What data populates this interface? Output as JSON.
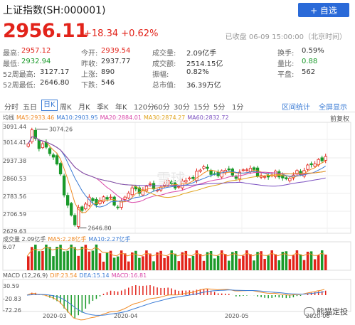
{
  "header": {
    "title": "上证指数(SH:000001)",
    "add_button": "+ 自选"
  },
  "quote": {
    "price": "2956.11",
    "change": "+18.34 +0.62%",
    "status": "已收盘 06-09 15:00:00（北京时间）"
  },
  "stats": {
    "rows": [
      [
        {
          "label": "最高:",
          "value": "2957.12",
          "color": "red"
        },
        {
          "label": "今开:",
          "value": "2939.54",
          "color": "red"
        },
        {
          "label": "成交量:",
          "value": "2.09亿手",
          "color": ""
        },
        {
          "label": "换手:",
          "value": "0.59%",
          "color": ""
        }
      ],
      [
        {
          "label": "最低:",
          "value": "2932.94",
          "color": "green"
        },
        {
          "label": "昨收:",
          "value": "2937.77",
          "color": ""
        },
        {
          "label": "成交额:",
          "value": "2514.15亿",
          "color": ""
        },
        {
          "label": "量比:",
          "value": "0.88",
          "color": "green"
        }
      ],
      [
        {
          "label": "52周最高:",
          "value": "3127.17",
          "color": ""
        },
        {
          "label": "上涨:",
          "value": "890",
          "color": ""
        },
        {
          "label": "振幅:",
          "value": "0.82%",
          "color": ""
        },
        {
          "label": "平盘:",
          "value": "562",
          "color": ""
        }
      ],
      [
        {
          "label": "52周最低:",
          "value": "2646.80",
          "color": ""
        },
        {
          "label": "下跌:",
          "value": "546",
          "color": ""
        },
        {
          "label": "总市值:",
          "value": "36.39万亿",
          "color": ""
        },
        {
          "label": "",
          "value": "",
          "color": ""
        }
      ]
    ]
  },
  "tabs": [
    "分时",
    "五日",
    "日K",
    "周K",
    "月K",
    "季K",
    "年K",
    "120分",
    "60分",
    "30分",
    "15分",
    "5分",
    "1分"
  ],
  "active_tab": "日K",
  "tab_actions": [
    "区间统计",
    "全屏显示"
  ],
  "ma_legend": [
    {
      "text": "均线",
      "color": "#555555"
    },
    {
      "text": "MA5:2933.46",
      "color": "#f08a24"
    },
    {
      "text": "MA10:2903.95",
      "color": "#3a7bd5"
    },
    {
      "text": "MA20:2884.01",
      "color": "#d946a8"
    },
    {
      "text": "MA30:2874.27",
      "color": "#e0a21a"
    },
    {
      "text": "MA60:2832.72",
      "color": "#7a4fc0"
    }
  ],
  "fq_label": "前复权",
  "price_axis": [
    "3091.44",
    "3014.41",
    "2937.38",
    "2860.53",
    "2783.56",
    "2706.59",
    "2629.63"
  ],
  "annotations": {
    "high": "3074.26",
    "low": "2646.80"
  },
  "volume": {
    "legend": [
      {
        "text": "成交量 2.09亿手",
        "color": "#555555"
      },
      {
        "text": "MA5:2.28亿手",
        "color": "#f08a24"
      },
      {
        "text": "MA10:2.27亿手",
        "color": "#3a7bd5"
      }
    ],
    "axis": [
      "6.07"
    ]
  },
  "macd": {
    "legend": [
      {
        "text": "MACD (12,26,9)",
        "color": "#555555"
      },
      {
        "text": "DIF:23.54",
        "color": "#f08a24"
      },
      {
        "text": "DEA:15.14",
        "color": "#3a7bd5"
      },
      {
        "text": "MACD:16.81",
        "color": "#d946a8"
      }
    ],
    "axis": [
      "30.59",
      "-20.83",
      "-72.26"
    ]
  },
  "dates": [
    "2020-03",
    "2020-04",
    "2020-05",
    "2020-06"
  ],
  "watermark": "熊猫定投",
  "center_watermark": "雪球",
  "colors": {
    "up": "#e2231a",
    "down": "#1a9a2a",
    "accent": "#2a6ad8"
  }
}
